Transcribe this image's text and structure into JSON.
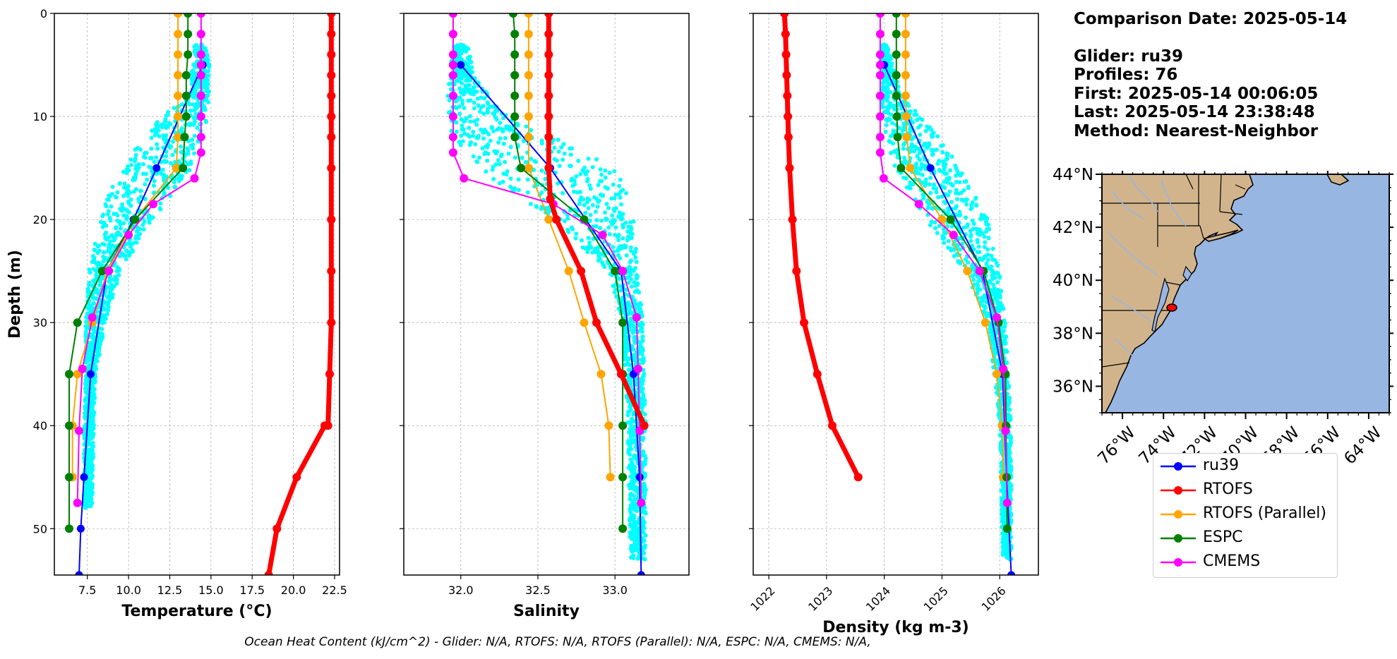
{
  "info": {
    "comparison": "Comparison Date: 2025-05-14",
    "glider": "Glider: ru39",
    "profiles": "Profiles: 76",
    "first": "First: 2025-05-14 00:06:05",
    "last": "Last: 2025-05-14 23:38:48",
    "method": "Method: Nearest-Neighbor"
  },
  "footer": "Ocean Heat Content (kJ/cm^2) - Glider: N/A,  RTOFS: N/A,  RTOFS (Parallel): N/A,  ESPC: N/A,  CMEMS: N/A,",
  "colors": {
    "glider_scatter": "#00ffff",
    "ru39": "#0000ff",
    "RTOFS": "#ff0000",
    "RTOFS (Parallel)": "#ffa500",
    "ESPC": "#008000",
    "CMEMS": "#ff00ff",
    "land": "#d2b48c",
    "ocean": "#98b6e2"
  },
  "chart_data": [
    {
      "type": "line",
      "xlabel": "Temperature (°C)",
      "ylabel": "Depth (m)",
      "xlim": [
        5.5,
        22.8
      ],
      "ylim": [
        54.5,
        0
      ],
      "xticks": [
        7.5,
        10.0,
        12.5,
        15.0,
        17.5,
        20.0,
        22.5
      ],
      "xtick_labels": [
        "7.5",
        "10.0",
        "12.5",
        "15.0",
        "17.5",
        "20.0",
        "22.5"
      ],
      "yticks": [
        0,
        10,
        20,
        30,
        40,
        50
      ],
      "grid": true,
      "series": [
        {
          "name": "ru39",
          "x": [
            14.5,
            11.7,
            10.3,
            8.7,
            7.7,
            7.3,
            7.1,
            7.0
          ],
          "y": [
            5,
            15,
            20,
            25,
            35,
            45,
            50,
            54.5
          ]
        },
        {
          "name": "RTOFS",
          "x": [
            22.3,
            22.3,
            22.3,
            22.3,
            22.3,
            22.3,
            22.3,
            22.3,
            22.3,
            22.3,
            22.3,
            22.2,
            22.1,
            21.9,
            20.2,
            19.0,
            18.5
          ],
          "y": [
            0,
            2,
            4,
            6,
            8,
            10,
            12,
            15,
            20,
            25,
            30,
            35,
            40,
            40,
            45,
            50,
            54.5
          ]
        },
        {
          "name": "RTOFS (Parallel)",
          "x": [
            13.0,
            13.0,
            13.0,
            13.0,
            13.0,
            13.0,
            13.0,
            12.9,
            10.4,
            8.7,
            7.8,
            6.9,
            6.6,
            6.6
          ],
          "y": [
            0,
            2,
            4,
            6,
            8,
            10,
            12,
            15,
            20,
            25,
            30,
            35,
            40,
            45
          ]
        },
        {
          "name": "ESPC",
          "x": [
            13.6,
            13.6,
            13.6,
            13.5,
            13.5,
            13.5,
            13.4,
            13.3,
            10.4,
            8.4,
            6.9,
            6.4,
            6.4,
            6.4,
            6.4
          ],
          "y": [
            0,
            2,
            4,
            6,
            8,
            10,
            12,
            15,
            20,
            25,
            30,
            35,
            40,
            45,
            50
          ]
        },
        {
          "name": "CMEMS",
          "x": [
            14.4,
            14.4,
            14.4,
            14.4,
            14.4,
            14.4,
            14.4,
            14.4,
            14.4,
            14.0,
            11.5,
            10.0,
            8.8,
            7.8,
            7.2,
            7.0,
            6.9
          ],
          "y": [
            0,
            2,
            4,
            5,
            6,
            8,
            10,
            12,
            13.5,
            16,
            18.5,
            21.5,
            25,
            29.5,
            34.5,
            40.5,
            47.5
          ]
        }
      ]
    },
    {
      "type": "line",
      "xlabel": "Salinity",
      "xlim": [
        31.63,
        33.48
      ],
      "ylim": [
        54.5,
        0
      ],
      "xticks": [
        32.0,
        32.5,
        33.0
      ],
      "xtick_labels": [
        "32.0",
        "32.5",
        "33.0"
      ],
      "yticks": [
        0,
        10,
        20,
        30,
        40,
        50
      ],
      "grid": true,
      "series": [
        {
          "name": "ru39",
          "x": [
            32.0,
            32.58,
            33.04,
            33.12,
            33.16,
            33.17
          ],
          "y": [
            5,
            15,
            25,
            35,
            45,
            54.5
          ]
        },
        {
          "name": "RTOFS",
          "x": [
            32.57,
            32.57,
            32.57,
            32.57,
            32.57,
            32.57,
            32.57,
            32.57,
            32.58,
            32.62,
            32.78,
            32.88,
            33.04,
            33.19
          ],
          "y": [
            0,
            2,
            4,
            6,
            8,
            10,
            12,
            15,
            18,
            20,
            25,
            30,
            35,
            40
          ]
        },
        {
          "name": "RTOFS (Parallel)",
          "x": [
            32.44,
            32.44,
            32.44,
            32.44,
            32.44,
            32.44,
            32.44,
            32.44,
            32.57,
            32.7,
            32.8,
            32.91,
            32.96,
            32.97
          ],
          "y": [
            0,
            2,
            4,
            6,
            8,
            10,
            12,
            15,
            20,
            25,
            30,
            35,
            40,
            45
          ]
        },
        {
          "name": "ESPC",
          "x": [
            32.34,
            32.35,
            32.35,
            32.35,
            32.35,
            32.35,
            32.35,
            32.39,
            32.8,
            33.0,
            33.05,
            33.05,
            33.05,
            33.05,
            33.05
          ],
          "y": [
            0,
            2,
            4,
            6,
            8,
            10,
            12,
            15,
            20,
            25,
            30,
            35,
            40,
            45,
            50
          ]
        },
        {
          "name": "CMEMS",
          "x": [
            31.95,
            31.95,
            31.95,
            31.95,
            31.95,
            31.95,
            31.95,
            31.95,
            31.95,
            32.02,
            32.6,
            32.92,
            33.05,
            33.14,
            33.15,
            33.16,
            33.17
          ],
          "y": [
            0,
            2,
            4,
            5,
            6,
            8,
            10,
            12,
            13.5,
            16,
            18.5,
            21.5,
            25,
            29.5,
            34.5,
            40.5,
            47.5
          ]
        }
      ]
    },
    {
      "type": "line",
      "xlabel": "Density (kg m-3)",
      "xlim": [
        1021.73,
        1026.67
      ],
      "ylim": [
        54.5,
        0
      ],
      "xticks": [
        1022,
        1023,
        1024,
        1025,
        1026
      ],
      "xtick_labels": [
        "1022",
        "1023",
        "1024",
        "1025",
        "1026"
      ],
      "yticks": [
        0,
        10,
        20,
        30,
        40,
        50
      ],
      "grid": true,
      "series": [
        {
          "name": "ru39",
          "x": [
            1024.0,
            1024.8,
            1025.7,
            1026.05,
            1026.12,
            1026.2
          ],
          "y": [
            5,
            15,
            25,
            35,
            45,
            54.5
          ]
        },
        {
          "name": "RTOFS",
          "x": [
            1022.27,
            1022.29,
            1022.3,
            1022.31,
            1022.32,
            1022.33,
            1022.34,
            1022.36,
            1022.41,
            1022.48,
            1022.61,
            1022.84,
            1023.1,
            1023.55
          ],
          "y": [
            0,
            2,
            4,
            6,
            8,
            10,
            12,
            15,
            20,
            25,
            30,
            35,
            40,
            45
          ]
        },
        {
          "name": "RTOFS (Parallel)",
          "x": [
            1024.37,
            1024.37,
            1024.37,
            1024.37,
            1024.37,
            1024.38,
            1024.39,
            1024.45,
            1025.0,
            1025.44,
            1025.75,
            1025.95,
            1026.04,
            1026.06
          ],
          "y": [
            0,
            2,
            4,
            6,
            8,
            10,
            12,
            15,
            20,
            25,
            30,
            35,
            40,
            45
          ]
        },
        {
          "name": "ESPC",
          "x": [
            1024.21,
            1024.21,
            1024.21,
            1024.21,
            1024.21,
            1024.22,
            1024.23,
            1024.29,
            1025.15,
            1025.72,
            1025.98,
            1026.1,
            1026.11,
            1026.12,
            1026.13
          ],
          "y": [
            0,
            2,
            4,
            6,
            8,
            10,
            12,
            15,
            20,
            25,
            30,
            35,
            40,
            45,
            50
          ]
        },
        {
          "name": "CMEMS",
          "x": [
            1023.93,
            1023.93,
            1023.93,
            1023.93,
            1023.93,
            1023.93,
            1023.93,
            1023.93,
            1023.93,
            1023.99,
            1024.6,
            1025.2,
            1025.65,
            1025.95,
            1026.06,
            1026.1,
            1026.13
          ],
          "y": [
            0,
            2,
            4,
            5,
            6,
            8,
            10,
            12,
            13.5,
            16,
            18.5,
            21.5,
            25,
            29.5,
            34.5,
            40.5,
            47.5
          ]
        }
      ]
    },
    {
      "type": "map",
      "lon_range": [
        -77.0,
        -63.0
      ],
      "lat_range": [
        35.0,
        44.0
      ],
      "xtick_labels": [
        "76°W",
        "74°W",
        "72°W",
        "70°W",
        "68°W",
        "66°W",
        "64°W"
      ],
      "xticks": [
        -76,
        -74,
        -72,
        -70,
        -68,
        -66,
        -64
      ],
      "ytick_labels": [
        "36°N",
        "38°N",
        "40°N",
        "42°N",
        "44°N"
      ],
      "yticks": [
        36,
        38,
        40,
        42,
        44
      ],
      "glider_position": {
        "lon": -74.15,
        "lat": 39.1
      }
    }
  ],
  "legend": [
    {
      "name": "ru39",
      "color": "#0000ff"
    },
    {
      "name": "RTOFS",
      "color": "#ff0000"
    },
    {
      "name": "RTOFS (Parallel)",
      "color": "#ffa500"
    },
    {
      "name": "ESPC",
      "color": "#008000"
    },
    {
      "name": "CMEMS",
      "color": "#ff00ff"
    }
  ]
}
